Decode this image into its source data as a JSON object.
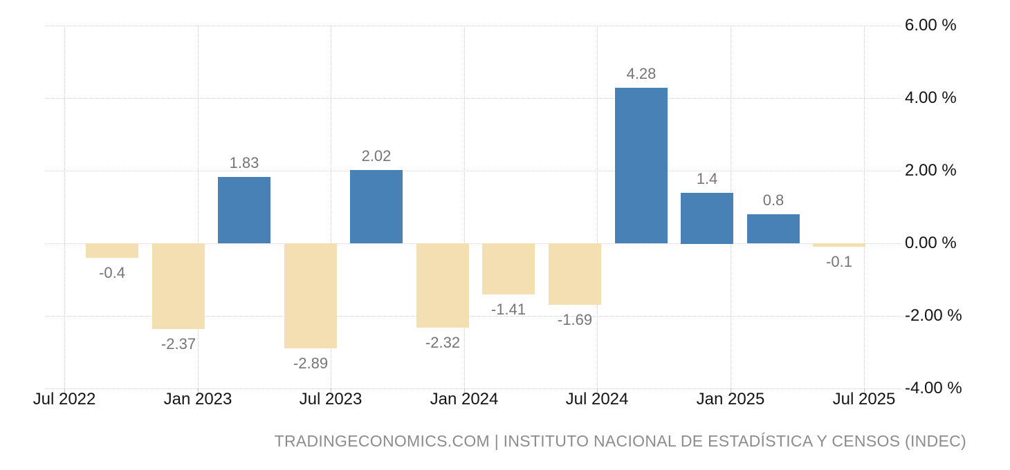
{
  "chart_data": {
    "type": "bar",
    "values": [
      -0.4,
      -2.37,
      1.83,
      -2.89,
      2.02,
      -2.32,
      -1.41,
      -1.69,
      4.28,
      1.4,
      0.8,
      -0.1
    ],
    "value_labels": [
      "-0.4",
      "-2.37",
      "1.83",
      "-2.89",
      "2.02",
      "-2.32",
      "-1.41",
      "-1.69",
      "4.28",
      "1.4",
      "0.8",
      "-0.1"
    ],
    "x_tick_labels": [
      "Jul 2022",
      "Jan 2023",
      "Jul 2023",
      "Jan 2024",
      "Jul 2024",
      "Jan 2025",
      "Jul 2025"
    ],
    "y_ticks": [
      {
        "value": 6,
        "label": "6.00 %"
      },
      {
        "value": 4,
        "label": "4.00 %"
      },
      {
        "value": 2,
        "label": "2.00 %"
      },
      {
        "value": 0,
        "label": "0.00 %"
      },
      {
        "value": -2,
        "label": "-2.00 %"
      },
      {
        "value": -4,
        "label": "-4.00 %"
      }
    ],
    "ylim": [
      -4.6,
      6.3
    ],
    "unit": "%",
    "grid": "dotted",
    "legend": "none",
    "colors": {
      "positive_bar": "#4881B5",
      "negative_bar": "#F4DFB3",
      "value_label": "#757577",
      "axis_label": "#141414",
      "gridline": "#d2d2d2",
      "attribution_text": "#8c8c8c"
    },
    "attribution": "TRADINGECONOMICS.COM | INSTITUTO NACIONAL DE ESTADÍSTICA Y CENSOS (INDEC)"
  }
}
